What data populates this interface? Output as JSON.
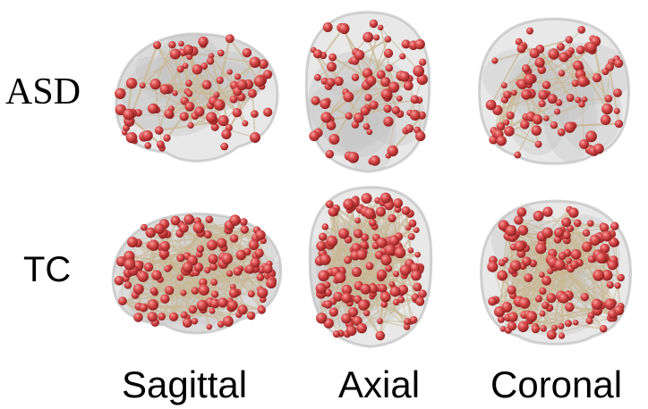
{
  "figure": {
    "row_labels": {
      "asd": "ASD",
      "tc": "TC"
    },
    "view_labels": {
      "sagittal": "Sagittal",
      "axial": "Axial",
      "coronal": "Coronal"
    }
  },
  "colors": {
    "node": "#d94a4a",
    "node_highlight": "#f4a3a3",
    "node_shadow": "#8a1e1e",
    "edge": "#c9b896",
    "brain_shell": "#d5d5d5",
    "brain_shell_edge": "#b8b8b8"
  },
  "panels": [
    {
      "id": "asd-sagittal",
      "group": "ASD",
      "view": "Sagittal",
      "density": "sparse"
    },
    {
      "id": "asd-axial",
      "group": "ASD",
      "view": "Axial",
      "density": "sparse"
    },
    {
      "id": "asd-coronal",
      "group": "ASD",
      "view": "Coronal",
      "density": "sparse"
    },
    {
      "id": "tc-sagittal",
      "group": "TC",
      "view": "Sagittal",
      "density": "dense"
    },
    {
      "id": "tc-axial",
      "group": "TC",
      "view": "Axial",
      "density": "dense"
    },
    {
      "id": "tc-coronal",
      "group": "TC",
      "view": "Coronal",
      "density": "dense"
    }
  ]
}
